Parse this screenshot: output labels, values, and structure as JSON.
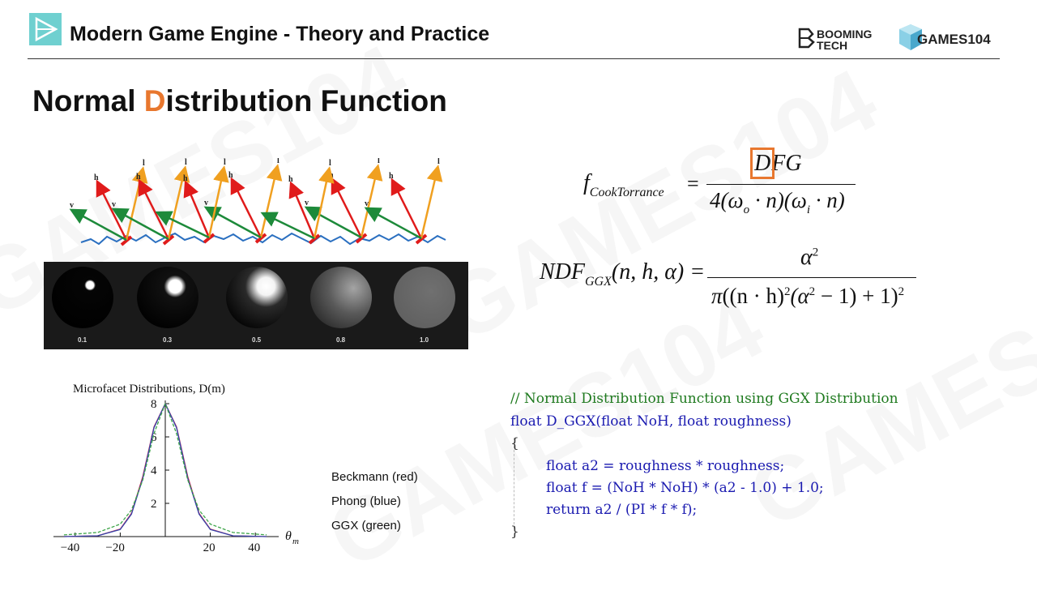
{
  "header": {
    "title": "Modern Game Engine - Theory and Practice",
    "brand_booming_line1": "BOOMING",
    "brand_booming_line2": "TECH",
    "brand_games": "GAMES104",
    "logo_icon": "play-triangle-icon"
  },
  "slide": {
    "title_prefix": "Normal ",
    "title_highlight": "D",
    "title_suffix": "istribution Function",
    "highlight_color": "#e8772e"
  },
  "microfacet_diagram": {
    "vector_labels": {
      "h": "h",
      "l": "l",
      "v": "v"
    },
    "colors": {
      "h": "#e01b1b",
      "l": "#f0a020",
      "v": "#1d8a3a",
      "surface": "#2a6fc0"
    }
  },
  "spheres": {
    "roughness_labels": [
      "0.1",
      "0.3",
      "0.5",
      "0.8",
      "1.0"
    ]
  },
  "formulas": {
    "cook_torrance": {
      "lhs_f": "f",
      "lhs_sub": "CookTorrance",
      "eq": "=",
      "numerator_D": "D",
      "numerator_FG": "FG",
      "denominator": "4(ω",
      "den_o": "o",
      "den_mid": " · n)(ω",
      "den_i": "i",
      "den_end": " · n)"
    },
    "ndf_ggx": {
      "lhs": "NDF",
      "lhs_sub": "GGX",
      "lhs_args": "(n, h, α) =",
      "numerator": "α",
      "numerator_sup": "2",
      "den_pi": "π",
      "den_body": "((n · h)",
      "den_sup1": "2",
      "den_mid": "(α",
      "den_sup2": "2",
      "den_end": " − 1) + 1)",
      "den_sup3": "2"
    }
  },
  "plot": {
    "title": "Microfacet Distributions, D(m)",
    "xlabel": "θ",
    "xlabel_sub": "m",
    "x_ticks": [
      "−40",
      "−20",
      "20",
      "40"
    ],
    "y_ticks": [
      "2",
      "4",
      "6",
      "8"
    ]
  },
  "legend": {
    "beckmann": "Beckmann (red)",
    "phong": "Phong (blue)",
    "ggx": "GGX (green)"
  },
  "chart_data": {
    "type": "line",
    "title": "Microfacet Distributions, D(m)",
    "xlabel": "θm",
    "ylabel": "",
    "xlim": [
      -50,
      50
    ],
    "ylim": [
      0,
      8
    ],
    "series": [
      {
        "name": "Beckmann (red)",
        "color": "#d4234a",
        "x": [
          -45,
          -30,
          -20,
          -15,
          -10,
          -5,
          0,
          5,
          10,
          15,
          20,
          30,
          45
        ],
        "values": [
          0,
          0.05,
          0.45,
          1.4,
          3.6,
          6.6,
          8,
          6.6,
          3.6,
          1.4,
          0.45,
          0.05,
          0
        ]
      },
      {
        "name": "Phong (blue)",
        "color": "#3344aa",
        "x": [
          -45,
          -30,
          -20,
          -15,
          -10,
          -5,
          0,
          5,
          10,
          15,
          20,
          30,
          45
        ],
        "values": [
          0,
          0.05,
          0.43,
          1.35,
          3.5,
          6.55,
          8,
          6.55,
          3.5,
          1.35,
          0.43,
          0.05,
          0
        ]
      },
      {
        "name": "GGX (green)",
        "color": "#3fa54a",
        "x": [
          -45,
          -30,
          -20,
          -15,
          -10,
          -5,
          0,
          5,
          10,
          15,
          20,
          30,
          45
        ],
        "values": [
          0.1,
          0.25,
          0.75,
          1.6,
          3.4,
          6.2,
          8,
          6.2,
          3.4,
          1.6,
          0.75,
          0.25,
          0.1
        ]
      }
    ]
  },
  "code": {
    "line1": "// Normal Distribution Function using GGX Distribution",
    "line2": "float D_GGX(float NoH, float roughness)",
    "line3": "{",
    "line4": "float a2 = roughness * roughness;",
    "line5": "float f = (NoH * NoH) * (a2 - 1.0) + 1.0;",
    "line6": "return a2 / (PI * f * f);",
    "line7": "}"
  },
  "watermark": {
    "text": "GAMES104"
  }
}
